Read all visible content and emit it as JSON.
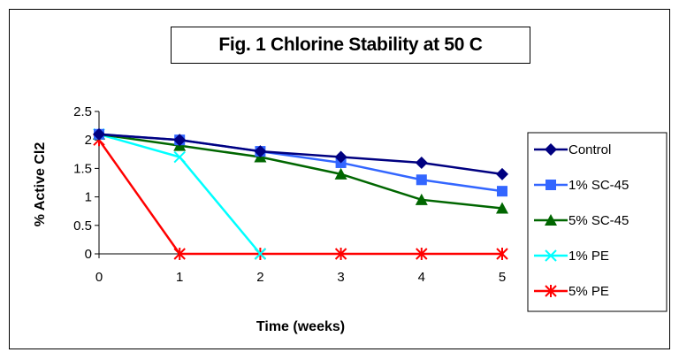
{
  "chart_data": {
    "type": "line",
    "title": "Fig. 1 Chlorine Stability at 50 C",
    "xlabel": "Time (weeks)",
    "ylabel": "% Active Cl2",
    "x": [
      0,
      1,
      2,
      3,
      4,
      5
    ],
    "x_tick_labels": [
      "0",
      "1",
      "2",
      "3",
      "4",
      "5"
    ],
    "y_tick_labels": [
      "0",
      "0.5",
      "1",
      "1.5",
      "2",
      "2.5"
    ],
    "ylim": [
      0,
      2.5
    ],
    "grid": false,
    "legend_position": "right",
    "series": [
      {
        "name": "Control",
        "color": "#000080",
        "marker": "diamond",
        "values": [
          2.1,
          2.0,
          1.8,
          1.7,
          1.6,
          1.4
        ]
      },
      {
        "name": "1% SC-45",
        "color": "#3366ff",
        "marker": "square",
        "values": [
          2.1,
          2.0,
          1.8,
          1.6,
          1.3,
          1.1
        ]
      },
      {
        "name": "5% SC-45",
        "color": "#006600",
        "marker": "triangle",
        "values": [
          2.1,
          1.9,
          1.7,
          1.4,
          0.95,
          0.8
        ]
      },
      {
        "name": "1% PE",
        "color": "#00ffff",
        "marker": "x",
        "values": [
          2.1,
          1.7,
          0,
          null,
          null,
          null
        ]
      },
      {
        "name": "5% PE",
        "color": "#ff0000",
        "marker": "star",
        "values": [
          2.0,
          0,
          0,
          0,
          0,
          0
        ]
      }
    ]
  }
}
